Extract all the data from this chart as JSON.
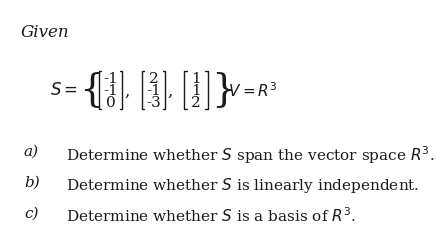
{
  "bg_color": "#ffffff",
  "text_color": "#1a1a1a",
  "title": "Given",
  "part_a_label": "a)",
  "part_a_text": "Determine whether $S$ span the vector space $R^3$.",
  "part_b_label": "b)",
  "part_b_text": "Determine whether $S$ is linearly independent.",
  "part_c_label": "c)",
  "part_c_text": "Determine whether $S$ is a basis of $R^3$.",
  "vec1": [
    "-1",
    "-1",
    "0"
  ],
  "vec2": [
    "2",
    "-1",
    "-3"
  ],
  "vec3": [
    "1",
    "1",
    "2"
  ],
  "font_size_title": 12,
  "font_size_parts": 11,
  "font_size_matrix": 11
}
